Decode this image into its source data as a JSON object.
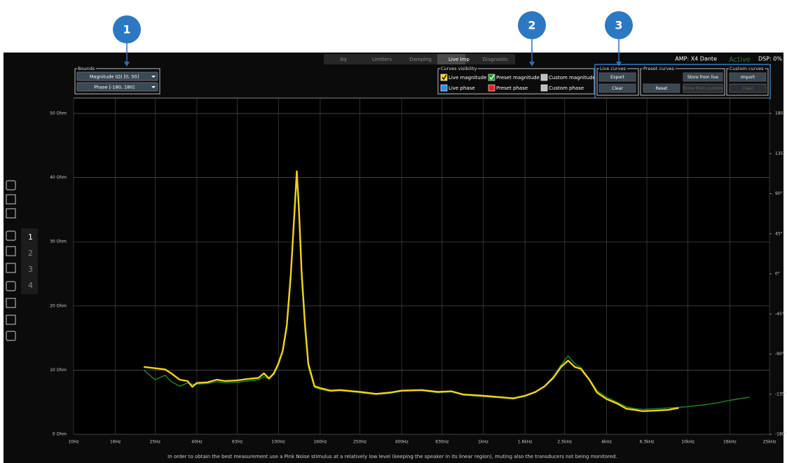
{
  "callouts": [
    "1",
    "2",
    "3"
  ],
  "tabs": [
    "Eq",
    "Limiters",
    "Damping",
    "Live Imp",
    "Diagnostic"
  ],
  "active_tab": 3,
  "status": {
    "amp": "AMP: X4 Dante",
    "state": "Active",
    "dsp": "DSP: 0%"
  },
  "bounds": {
    "title": "Bounds",
    "magnitude": "Magnitude (Ω) [0, 50]",
    "phase": "Phase [-180, 180]"
  },
  "curves_visibility": {
    "title": "Curves visibility",
    "items": [
      {
        "label": "Live magnitude",
        "color": "#f2d21a"
      },
      {
        "label": "Preset magnitude",
        "color": "#1e9a2a"
      },
      {
        "label": "Custom magnitude",
        "color": "#bdbdbd"
      },
      {
        "label": "Live phase",
        "color": "#2f8fe8"
      },
      {
        "label": "Preset phase",
        "color": "#e02424"
      },
      {
        "label": "Custom phase",
        "color": "#bdbdbd"
      }
    ]
  },
  "live_curves": {
    "title": "Live curves",
    "buttons": [
      {
        "label": "Export"
      },
      {
        "label": "Clear"
      }
    ]
  },
  "preset_curves": {
    "title": "Preset curves",
    "buttons": [
      {
        "label": "Store from live"
      },
      {
        "label": "Reset"
      },
      {
        "label": "Store from custom",
        "disabled": true
      }
    ]
  },
  "custom_curves": {
    "title": "Custom curves",
    "buttons": [
      {
        "label": "Import"
      },
      {
        "label": "Clear",
        "disabled": true
      }
    ]
  },
  "sidebar_numbers": [
    "1",
    "2",
    "3",
    "4"
  ],
  "footer": "In order to obtain the best measurement use a Pink Noise stimulus at a relatively low level (keeping the speaker in its linear region), muting also the transducers not being monitored.",
  "chart_data": {
    "type": "line",
    "xlog": true,
    "grid": true,
    "x": [
      22,
      25,
      28,
      30,
      33,
      36,
      38,
      40,
      45,
      50,
      55,
      63,
      70,
      80,
      85,
      90,
      95,
      100,
      105,
      110,
      115,
      120,
      123,
      126,
      130,
      135,
      140,
      150,
      160,
      180,
      200,
      250,
      300,
      350,
      400,
      500,
      600,
      700,
      800,
      1000,
      1200,
      1400,
      1600,
      1800,
      2000,
      2200,
      2400,
      2600,
      2800,
      3000,
      3300,
      3600,
      4000,
      4500,
      5000,
      5500,
      6000,
      7000,
      8000,
      9000,
      10000,
      12000,
      14000,
      16000,
      20000
    ],
    "series": [
      {
        "name": "Preset magnitude",
        "color": "#1e8a24",
        "values": [
          10.0,
          8.5,
          9.2,
          8.2,
          7.5,
          8.0,
          7.8,
          7.8,
          7.9,
          8.2,
          8.0,
          8.1,
          8.3,
          8.5,
          9.0,
          8.6,
          9.3,
          10.8,
          12.8,
          16.5,
          24,
          34,
          40,
          34,
          24,
          16,
          10.5,
          7.3,
          7.0,
          6.7,
          6.8,
          6.5,
          6.2,
          6.4,
          6.7,
          6.8,
          6.5,
          6.6,
          6.1,
          5.9,
          5.7,
          5.5,
          5.9,
          6.5,
          7.6,
          9.0,
          10.8,
          12.2,
          11.0,
          10.4,
          8.6,
          6.8,
          5.8,
          5.0,
          4.3,
          4.0,
          3.9,
          4.0,
          4.1,
          4.2,
          4.3,
          4.6,
          4.9,
          5.3,
          5.8
        ]
      },
      {
        "name": "Live magnitude",
        "color": "#f2d21a",
        "values": [
          10.5,
          10.3,
          10.1,
          9.5,
          8.5,
          8.3,
          7.4,
          8.0,
          8.1,
          8.5,
          8.3,
          8.4,
          8.6,
          8.8,
          9.5,
          8.7,
          9.5,
          11,
          13,
          17,
          25,
          35,
          41,
          35,
          25,
          17,
          11,
          7.5,
          7.2,
          6.8,
          6.9,
          6.6,
          6.3,
          6.5,
          6.8,
          6.9,
          6.6,
          6.7,
          6.2,
          6.0,
          5.8,
          5.6,
          6.0,
          6.6,
          7.5,
          8.8,
          10.5,
          11.5,
          10.5,
          10.2,
          8.5,
          6.5,
          5.5,
          4.8,
          4.0,
          3.8,
          3.6,
          3.7,
          3.8,
          4.1,
          null,
          null,
          null,
          null,
          null
        ]
      }
    ],
    "xlim": [
      10,
      25000
    ],
    "xticks": [
      {
        "value": 10,
        "label": "10Hz"
      },
      {
        "value": 16,
        "label": "16Hz"
      },
      {
        "value": 25,
        "label": "25Hz"
      },
      {
        "value": 40,
        "label": "40Hz"
      },
      {
        "value": 63,
        "label": "63Hz"
      },
      {
        "value": 100,
        "label": "100Hz"
      },
      {
        "value": 160,
        "label": "160Hz"
      },
      {
        "value": 250,
        "label": "250Hz"
      },
      {
        "value": 400,
        "label": "400Hz"
      },
      {
        "value": 630,
        "label": "630Hz"
      },
      {
        "value": 1000,
        "label": "1kHz"
      },
      {
        "value": 1600,
        "label": "1.6kHz"
      },
      {
        "value": 2500,
        "label": "2.5kHz"
      },
      {
        "value": 4000,
        "label": "4kHz"
      },
      {
        "value": 6300,
        "label": "6.3kHz"
      },
      {
        "value": 10000,
        "label": "10kHz"
      },
      {
        "value": 16000,
        "label": "16kHz"
      },
      {
        "value": 25000,
        "label": "25kHz"
      }
    ],
    "ylim": [
      0,
      50
    ],
    "yticks": [
      {
        "value": 0,
        "label": "0 Ohm"
      },
      {
        "value": 10,
        "label": "10 Ohm"
      },
      {
        "value": 20,
        "label": "20 Ohm"
      },
      {
        "value": 30,
        "label": "30 Ohm"
      },
      {
        "value": 40,
        "label": "40 Ohm"
      },
      {
        "value": 50,
        "label": "50 Ohm"
      }
    ],
    "y2lim": [
      -180,
      180
    ],
    "y2ticks": [
      {
        "value": 180,
        "label": "180°"
      },
      {
        "value": 135,
        "label": "135°"
      },
      {
        "value": 90,
        "label": "90°"
      },
      {
        "value": 45,
        "label": "45°"
      },
      {
        "value": 0,
        "label": "0°"
      },
      {
        "value": -45,
        "label": "-45°"
      },
      {
        "value": -90,
        "label": "-90°"
      },
      {
        "value": -135,
        "label": "-135°"
      },
      {
        "value": -180,
        "label": "-180°"
      }
    ]
  }
}
